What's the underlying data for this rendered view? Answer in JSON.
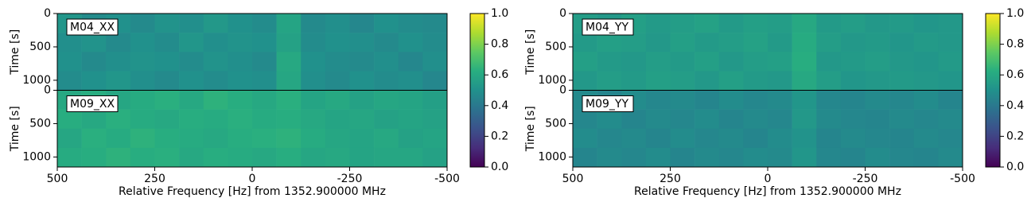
{
  "chart_data": [
    {
      "type": "heatmap",
      "colormap": "viridis",
      "xlabel": "Relative Frequency [Hz] from 1352.900000 MHz",
      "ylabel": "Time [s]",
      "xlim": [
        500,
        -500
      ],
      "xticks": [
        500,
        250,
        0,
        -250,
        -500
      ],
      "ylim": [
        1150,
        0
      ],
      "yticks": [
        0,
        500,
        1000
      ],
      "clim": [
        0,
        1
      ],
      "cticks": [
        {
          "value": 0,
          "label": "0.0"
        },
        0.2,
        0.4,
        0.6,
        0.8,
        {
          "value": 1,
          "label": "1.0"
        }
      ],
      "subplots": [
        {
          "label": "M04_XX",
          "values": [
            [
              0.52,
              0.48,
              0.5,
              0.47,
              0.51,
              0.49,
              0.53,
              0.5,
              0.48,
              0.58,
              0.47,
              0.49,
              0.46,
              0.5,
              0.48,
              0.47
            ],
            [
              0.49,
              0.51,
              0.47,
              0.5,
              0.48,
              0.52,
              0.49,
              0.51,
              0.5,
              0.57,
              0.48,
              0.5,
              0.49,
              0.47,
              0.5,
              0.48
            ],
            [
              0.5,
              0.47,
              0.49,
              0.51,
              0.5,
              0.48,
              0.51,
              0.49,
              0.47,
              0.6,
              0.5,
              0.48,
              0.47,
              0.49,
              0.46,
              0.49
            ],
            [
              0.48,
              0.5,
              0.52,
              0.49,
              0.47,
              0.5,
              0.48,
              0.5,
              0.49,
              0.59,
              0.49,
              0.47,
              0.5,
              0.48,
              0.49,
              0.46
            ]
          ]
        },
        {
          "label": "M09_XX",
          "values": [
            [
              0.6,
              0.62,
              0.59,
              0.61,
              0.63,
              0.6,
              0.64,
              0.62,
              0.6,
              0.63,
              0.58,
              0.6,
              0.57,
              0.59,
              0.58,
              0.56
            ],
            [
              0.62,
              0.6,
              0.63,
              0.61,
              0.6,
              0.62,
              0.61,
              0.63,
              0.61,
              0.62,
              0.6,
              0.58,
              0.59,
              0.57,
              0.58,
              0.57
            ],
            [
              0.59,
              0.63,
              0.61,
              0.64,
              0.62,
              0.61,
              0.6,
              0.62,
              0.63,
              0.64,
              0.61,
              0.59,
              0.58,
              0.6,
              0.57,
              0.58
            ],
            [
              0.61,
              0.62,
              0.64,
              0.62,
              0.63,
              0.6,
              0.62,
              0.61,
              0.6,
              0.62,
              0.59,
              0.6,
              0.58,
              0.59,
              0.59,
              0.57
            ]
          ]
        }
      ]
    },
    {
      "type": "heatmap",
      "colormap": "viridis",
      "xlabel": "Relative Frequency [Hz] from 1352.900000 MHz",
      "ylabel": "Time [s]",
      "xlim": [
        500,
        -500
      ],
      "xticks": [
        500,
        250,
        0,
        -250,
        -500
      ],
      "ylim": [
        1150,
        0
      ],
      "yticks": [
        0,
        500,
        1000
      ],
      "clim": [
        0,
        1
      ],
      "cticks": [
        {
          "value": 0,
          "label": "0.0"
        },
        0.2,
        0.4,
        0.6,
        0.8,
        {
          "value": 1,
          "label": "1.0"
        }
      ],
      "subplots": [
        {
          "label": "M04_YY",
          "values": [
            [
              0.55,
              0.53,
              0.56,
              0.54,
              0.55,
              0.57,
              0.54,
              0.56,
              0.55,
              0.6,
              0.54,
              0.55,
              0.53,
              0.54,
              0.52,
              0.53
            ],
            [
              0.54,
              0.56,
              0.55,
              0.53,
              0.56,
              0.54,
              0.55,
              0.57,
              0.54,
              0.61,
              0.55,
              0.53,
              0.54,
              0.52,
              0.54,
              0.53
            ],
            [
              0.56,
              0.54,
              0.53,
              0.55,
              0.54,
              0.56,
              0.53,
              0.55,
              0.56,
              0.62,
              0.53,
              0.54,
              0.55,
              0.53,
              0.52,
              0.54
            ],
            [
              0.53,
              0.55,
              0.54,
              0.56,
              0.55,
              0.53,
              0.56,
              0.54,
              0.53,
              0.6,
              0.55,
              0.52,
              0.53,
              0.54,
              0.53,
              0.52
            ]
          ]
        },
        {
          "label": "M09_YY",
          "values": [
            [
              0.47,
              0.45,
              0.48,
              0.46,
              0.47,
              0.45,
              0.48,
              0.46,
              0.47,
              0.52,
              0.46,
              0.45,
              0.47,
              0.46,
              0.48,
              0.45
            ],
            [
              0.46,
              0.48,
              0.45,
              0.47,
              0.46,
              0.48,
              0.45,
              0.47,
              0.46,
              0.53,
              0.47,
              0.46,
              0.45,
              0.47,
              0.46,
              0.47
            ],
            [
              0.48,
              0.46,
              0.47,
              0.45,
              0.48,
              0.46,
              0.47,
              0.45,
              0.48,
              0.51,
              0.45,
              0.47,
              0.46,
              0.45,
              0.47,
              0.46
            ],
            [
              0.45,
              0.47,
              0.46,
              0.48,
              0.45,
              0.47,
              0.46,
              0.48,
              0.47,
              0.52,
              0.46,
              0.45,
              0.48,
              0.46,
              0.45,
              0.47
            ]
          ]
        }
      ]
    }
  ]
}
